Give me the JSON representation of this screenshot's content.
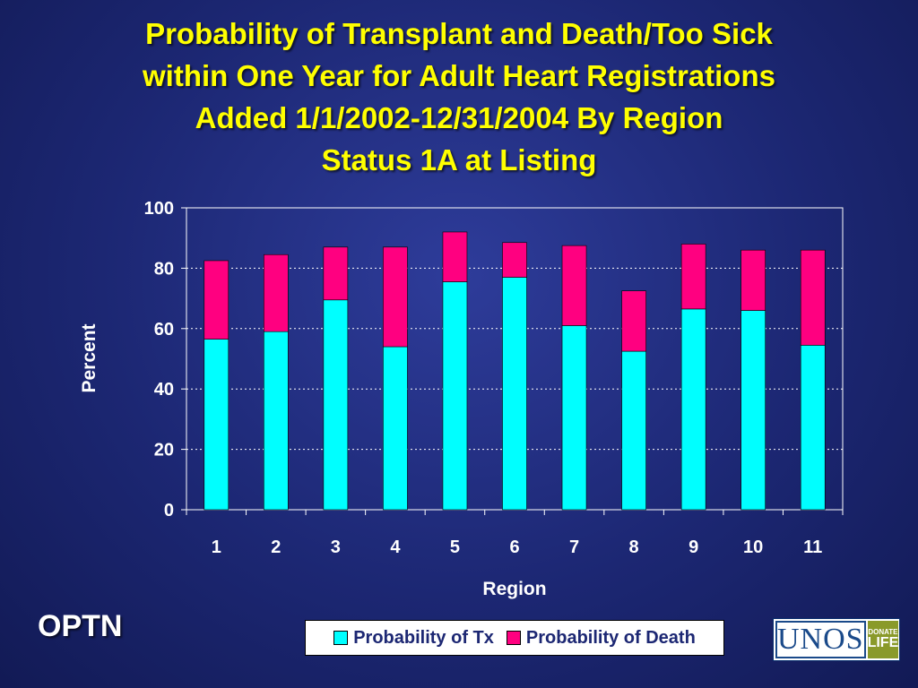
{
  "slide": {
    "title_lines": [
      "Probability of Transplant and Death/Too Sick",
      "within One Year for Adult Heart Registrations",
      "Added 1/1/2002-12/31/2004 By Region",
      "Status 1A at Listing"
    ],
    "org_label": "OPTN",
    "logo_text": "UNOS",
    "logo_badge_top": "DONATE",
    "logo_badge_bottom": "LIFE"
  },
  "chart_data": {
    "type": "bar",
    "stacked": true,
    "title": "",
    "xlabel": "Region",
    "ylabel": "Percent",
    "ylim": [
      0,
      100
    ],
    "yticks": [
      0,
      20,
      40,
      60,
      80,
      100
    ],
    "categories": [
      "1",
      "2",
      "3",
      "4",
      "5",
      "6",
      "7",
      "8",
      "9",
      "10",
      "11"
    ],
    "grid": true,
    "legend_position": "bottom",
    "series": [
      {
        "name": "Probability of Tx",
        "color": "#00ffff",
        "values": [
          56.5,
          59,
          69.5,
          54,
          75.5,
          77,
          61,
          52.5,
          66.5,
          66,
          54.5
        ]
      },
      {
        "name": "Probability of Death",
        "color": "#ff0080",
        "values": [
          26,
          25.5,
          17.5,
          33,
          16.5,
          11.5,
          26.5,
          20,
          21.5,
          20,
          31.5
        ]
      }
    ]
  }
}
